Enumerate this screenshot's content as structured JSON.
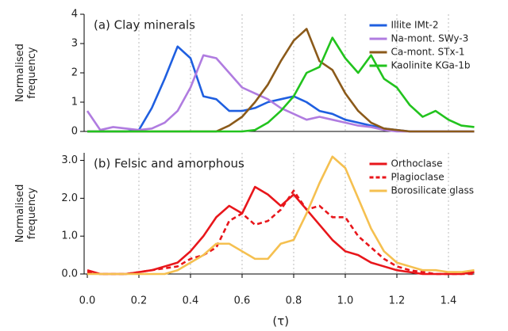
{
  "chart_data": [
    {
      "type": "line",
      "title": "(a) Clay minerals",
      "ylabel": "Normalised frequency",
      "x": [
        0,
        0.05,
        0.1,
        0.15,
        0.2,
        0.25,
        0.3,
        0.35,
        0.4,
        0.45,
        0.5,
        0.55,
        0.6,
        0.65,
        0.7,
        0.75,
        0.8,
        0.85,
        0.9,
        0.95,
        1.0,
        1.05,
        1.1,
        1.15,
        1.2,
        1.25,
        1.3,
        1.35,
        1.4,
        1.45,
        1.5
      ],
      "series": [
        {
          "name": "Illite IMt-2",
          "color": "#1f5fe0",
          "values": [
            0,
            0,
            0,
            0,
            0.05,
            0.8,
            1.8,
            2.9,
            2.5,
            1.2,
            1.1,
            0.7,
            0.7,
            0.8,
            1.0,
            1.1,
            1.2,
            1.0,
            0.7,
            0.6,
            0.4,
            0.3,
            0.2,
            0.1,
            0.05,
            0,
            0,
            0,
            0,
            0,
            0
          ]
        },
        {
          "name": "Na-mont. SWy-3",
          "color": "#b07ce0",
          "values": [
            0.7,
            0.05,
            0.15,
            0.1,
            0.05,
            0.1,
            0.3,
            0.7,
            1.5,
            2.6,
            2.5,
            2.0,
            1.5,
            1.3,
            1.1,
            0.8,
            0.6,
            0.4,
            0.5,
            0.4,
            0.3,
            0.2,
            0.15,
            0.05,
            0,
            0,
            0,
            0,
            0,
            0,
            0
          ]
        },
        {
          "name": "Ca-mont. STx-1",
          "color": "#8b5a1a",
          "values": [
            0,
            0,
            0,
            0,
            0,
            0,
            0,
            0,
            0,
            0,
            0,
            0.2,
            0.5,
            1.0,
            1.6,
            2.4,
            3.1,
            3.5,
            2.4,
            2.1,
            1.3,
            0.7,
            0.3,
            0.1,
            0.05,
            0,
            0,
            0,
            0,
            0,
            0
          ]
        },
        {
          "name": "Kaolinite KGa-1b",
          "color": "#22c31e",
          "values": [
            0,
            0,
            0,
            0,
            0,
            0,
            0,
            0,
            0,
            0,
            0,
            0,
            0,
            0.05,
            0.3,
            0.7,
            1.2,
            2.0,
            2.2,
            3.2,
            2.5,
            2.0,
            2.6,
            1.8,
            1.5,
            0.9,
            0.5,
            0.7,
            0.4,
            0.2,
            0.15
          ]
        }
      ],
      "xlim": [
        0,
        1.5
      ],
      "ylim": [
        0,
        4
      ],
      "yticks": [
        0,
        1,
        2,
        3,
        4
      ],
      "grid": true,
      "legend": "upper right"
    },
    {
      "type": "line",
      "title": "(b) Felsic and amorphous",
      "ylabel": "Normalised frequency",
      "xlabel": "(τ)",
      "x": [
        0,
        0.05,
        0.1,
        0.15,
        0.2,
        0.25,
        0.3,
        0.35,
        0.4,
        0.45,
        0.5,
        0.55,
        0.6,
        0.65,
        0.7,
        0.75,
        0.8,
        0.85,
        0.9,
        0.95,
        1.0,
        1.05,
        1.1,
        1.15,
        1.2,
        1.25,
        1.3,
        1.35,
        1.4,
        1.45,
        1.5
      ],
      "series": [
        {
          "name": "Orthoclase",
          "color": "#e8161b",
          "style": "solid",
          "values": [
            0.1,
            0,
            0,
            0,
            0.05,
            0.1,
            0.2,
            0.3,
            0.6,
            1.0,
            1.5,
            1.8,
            1.6,
            2.3,
            2.1,
            1.8,
            2.1,
            1.7,
            1.3,
            0.9,
            0.6,
            0.5,
            0.3,
            0.2,
            0.1,
            0.05,
            0,
            0,
            0,
            0,
            0.05
          ]
        },
        {
          "name": "Plagioclase",
          "color": "#e8161b",
          "style": "dashed",
          "values": [
            0.05,
            0,
            0,
            0,
            0.05,
            0.1,
            0.15,
            0.2,
            0.4,
            0.5,
            0.7,
            1.4,
            1.6,
            1.3,
            1.4,
            1.7,
            2.2,
            1.7,
            1.8,
            1.5,
            1.5,
            1.0,
            0.7,
            0.4,
            0.2,
            0.1,
            0.05,
            0,
            0,
            0,
            0
          ]
        },
        {
          "name": "Borosilicate glass",
          "color": "#f5c050",
          "style": "solid",
          "values": [
            0,
            0,
            0,
            0,
            0,
            0,
            0,
            0.1,
            0.3,
            0.5,
            0.8,
            0.8,
            0.6,
            0.4,
            0.4,
            0.8,
            0.9,
            1.6,
            2.4,
            3.1,
            2.8,
            2.0,
            1.2,
            0.6,
            0.3,
            0.2,
            0.1,
            0.1,
            0.05,
            0.05,
            0.1
          ]
        }
      ],
      "xlim": [
        0,
        1.5
      ],
      "ylim": [
        0,
        3.2
      ],
      "xticks": [
        {
          "value": 0,
          "label": "0.0"
        },
        0.2,
        0.4,
        0.6,
        0.8,
        {
          "value": 1,
          "label": "1.0"
        },
        1.2,
        1.4
      ],
      "yticks": [
        {
          "value": 0,
          "label": "0.0"
        },
        {
          "value": 1,
          "label": "1.0"
        },
        {
          "value": 2,
          "label": "2.0"
        },
        {
          "value": 3,
          "label": "3.0"
        }
      ],
      "grid": true,
      "legend": "upper right"
    }
  ]
}
